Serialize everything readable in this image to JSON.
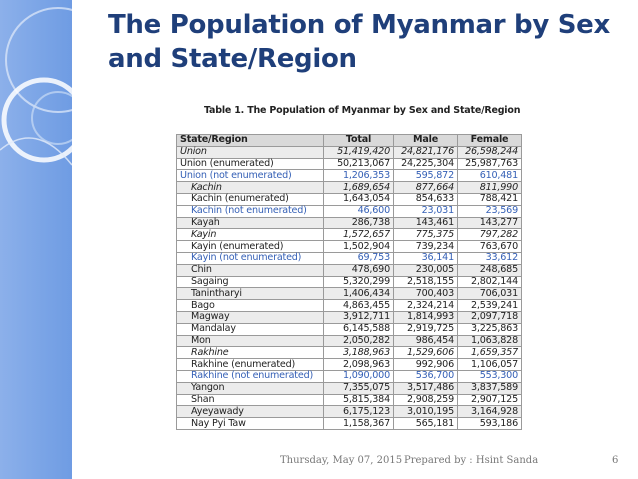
{
  "slide": {
    "title": "The Population of Myanmar by Sex and State/Region",
    "footer_date": "Thursday, May 07, 2015",
    "footer_prepared": "Prepared by : Hsint Sanda",
    "page_number": "6"
  },
  "table": {
    "caption": "Table 1. The Population of Myanmar by Sex and State/Region",
    "headers": [
      "State/Region",
      "Total",
      "Male",
      "Female"
    ],
    "rows": [
      {
        "name": "Union",
        "total": "51,419,420",
        "male": "24,821,176",
        "female": "26,598,244",
        "style": "italic shade"
      },
      {
        "name": "Union (enumerated)",
        "total": "50,213,067",
        "male": "24,225,304",
        "female": "25,987,763",
        "style": ""
      },
      {
        "name": "Union (not enumerated)",
        "total": "1,206,353",
        "male": "595,872",
        "female": "610,481",
        "style": "blue"
      },
      {
        "name": "Kachin",
        "total": "1,689,654",
        "male": "877,664",
        "female": "811,990",
        "style": "italic indent shade"
      },
      {
        "name": "Kachin (enumerated)",
        "total": "1,643,054",
        "male": "854,633",
        "female": "788,421",
        "style": "indent"
      },
      {
        "name": "Kachin (not enumerated)",
        "total": "46,600",
        "male": "23,031",
        "female": "23,569",
        "style": "blue indent"
      },
      {
        "name": "Kayah",
        "total": "286,738",
        "male": "143,461",
        "female": "143,277",
        "style": "indent shade"
      },
      {
        "name": "Kayin",
        "total": "1,572,657",
        "male": "775,375",
        "female": "797,282",
        "style": "italic indent"
      },
      {
        "name": "Kayin (enumerated)",
        "total": "1,502,904",
        "male": "739,234",
        "female": "763,670",
        "style": "indent"
      },
      {
        "name": "Kayin (not enumerated)",
        "total": "69,753",
        "male": "36,141",
        "female": "33,612",
        "style": "blue indent"
      },
      {
        "name": "Chin",
        "total": "478,690",
        "male": "230,005",
        "female": "248,685",
        "style": "indent shade"
      },
      {
        "name": "Sagaing",
        "total": "5,320,299",
        "male": "2,518,155",
        "female": "2,802,144",
        "style": "indent"
      },
      {
        "name": "Tanintharyi",
        "total": "1,406,434",
        "male": "700,403",
        "female": "706,031",
        "style": "indent shade"
      },
      {
        "name": "Bago",
        "total": "4,863,455",
        "male": "2,324,214",
        "female": "2,539,241",
        "style": "indent"
      },
      {
        "name": "Magway",
        "total": "3,912,711",
        "male": "1,814,993",
        "female": "2,097,718",
        "style": "indent shade"
      },
      {
        "name": "Mandalay",
        "total": "6,145,588",
        "male": "2,919,725",
        "female": "3,225,863",
        "style": "indent"
      },
      {
        "name": "Mon",
        "total": "2,050,282",
        "male": "986,454",
        "female": "1,063,828",
        "style": "indent shade"
      },
      {
        "name": "Rakhine",
        "total": "3,188,963",
        "male": "1,529,606",
        "female": "1,659,357",
        "style": "italic indent"
      },
      {
        "name": "Rakhine (enumerated)",
        "total": "2,098,963",
        "male": "992,906",
        "female": "1,106,057",
        "style": "indent"
      },
      {
        "name": "Rakhine (not enumerated)",
        "total": "1,090,000",
        "male": "536,700",
        "female": "553,300",
        "style": "blue indent"
      },
      {
        "name": "Yangon",
        "total": "7,355,075",
        "male": "3,517,486",
        "female": "3,837,589",
        "style": "indent shade"
      },
      {
        "name": "Shan",
        "total": "5,815,384",
        "male": "2,908,259",
        "female": "2,907,125",
        "style": "indent"
      },
      {
        "name": "Ayeyawady",
        "total": "6,175,123",
        "male": "3,010,195",
        "female": "3,164,928",
        "style": "indent shade"
      },
      {
        "name": "Nay Pyi Taw",
        "total": "1,158,367",
        "male": "565,181",
        "female": "593,186",
        "style": "indent"
      }
    ]
  }
}
